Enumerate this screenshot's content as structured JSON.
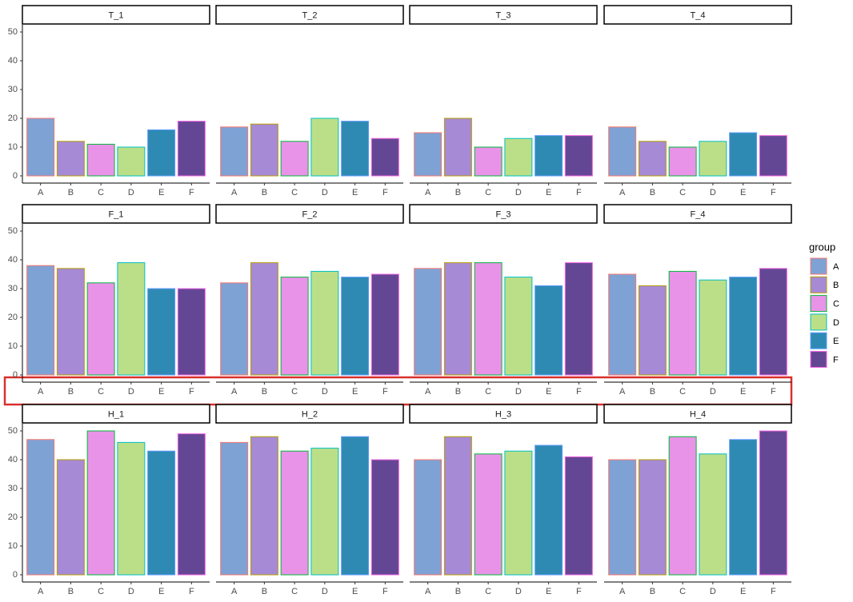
{
  "chart_data": {
    "type": "bar",
    "categories": [
      "A",
      "B",
      "C",
      "D",
      "E",
      "F"
    ],
    "colors": [
      "#7fa2d5",
      "#a68ad5",
      "#e993e8",
      "#bbdf88",
      "#2e8ab3",
      "#644794"
    ],
    "outline_colors": [
      "#f8766d",
      "#b79f00",
      "#00ba38",
      "#00bfc4",
      "#619cff",
      "#f564e3"
    ],
    "ylim": [
      -2.5,
      52.5
    ],
    "yticks": [
      0,
      10,
      20,
      30,
      40,
      50
    ],
    "legend": {
      "title": "group",
      "position": "right"
    },
    "panels": [
      {
        "title": "T_1",
        "values": [
          20,
          12,
          11,
          10,
          16,
          19
        ]
      },
      {
        "title": "T_2",
        "values": [
          17,
          18,
          12,
          20,
          19,
          13
        ]
      },
      {
        "title": "T_3",
        "values": [
          15,
          20,
          10,
          13,
          14,
          14
        ]
      },
      {
        "title": "T_4",
        "values": [
          17,
          12,
          10,
          12,
          15,
          14
        ]
      },
      {
        "title": "F_1",
        "values": [
          38,
          37,
          32,
          39,
          30,
          30
        ]
      },
      {
        "title": "F_2",
        "values": [
          32,
          39,
          34,
          36,
          34,
          35
        ]
      },
      {
        "title": "F_3",
        "values": [
          37,
          39,
          39,
          34,
          31,
          39
        ]
      },
      {
        "title": "F_4",
        "values": [
          35,
          31,
          36,
          33,
          34,
          37
        ]
      },
      {
        "title": "H_1",
        "values": [
          47,
          40,
          50,
          46,
          43,
          49
        ]
      },
      {
        "title": "H_2",
        "values": [
          46,
          48,
          43,
          44,
          48,
          40
        ]
      },
      {
        "title": "H_3",
        "values": [
          40,
          48,
          42,
          43,
          45,
          41
        ]
      },
      {
        "title": "H_4",
        "values": [
          40,
          40,
          48,
          42,
          47,
          50
        ]
      }
    ]
  }
}
